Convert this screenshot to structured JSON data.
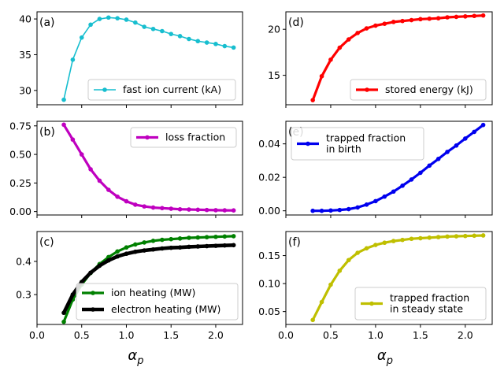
{
  "chart_data": [
    {
      "panel": "(a)",
      "type": "line",
      "legend": "fast ion current (kA)",
      "legend_location": "lower right",
      "color": "#17becf",
      "line_weight": "thin",
      "x": [
        0.3,
        0.4,
        0.5,
        0.6,
        0.7,
        0.8,
        0.9,
        1.0,
        1.1,
        1.2,
        1.3,
        1.4,
        1.5,
        1.6,
        1.7,
        1.8,
        1.9,
        2.0,
        2.1,
        2.2
      ],
      "y": [
        28.7,
        34.3,
        37.4,
        39.2,
        40.0,
        40.2,
        40.1,
        39.9,
        39.5,
        38.9,
        38.6,
        38.3,
        37.9,
        37.6,
        37.2,
        36.9,
        36.7,
        36.5,
        36.2,
        36.0
      ],
      "xlim": [
        0.0,
        2.3
      ],
      "ylim": [
        28.0,
        41.0
      ],
      "yticks": [
        30,
        35,
        40
      ],
      "xticks": [
        0.0,
        0.5,
        1.0,
        1.5,
        2.0
      ],
      "ytick_labels": [
        "30",
        "35",
        "40"
      ],
      "xtick_labels": []
    },
    {
      "panel": "(d)",
      "type": "line",
      "legend": "stored energy (kJ)",
      "legend_location": "lower right",
      "color": "#ff0000",
      "line_weight": "thick",
      "x": [
        0.3,
        0.4,
        0.5,
        0.6,
        0.7,
        0.8,
        0.9,
        1.0,
        1.1,
        1.2,
        1.3,
        1.4,
        1.5,
        1.6,
        1.7,
        1.8,
        1.9,
        2.0,
        2.1,
        2.2
      ],
      "y": [
        12.3,
        14.9,
        16.7,
        18.0,
        18.9,
        19.6,
        20.1,
        20.4,
        20.6,
        20.8,
        20.9,
        21.0,
        21.1,
        21.15,
        21.2,
        21.3,
        21.35,
        21.4,
        21.45,
        21.5
      ],
      "xlim": [
        0.0,
        2.3
      ],
      "ylim": [
        11.8,
        21.9
      ],
      "yticks": [
        15,
        20
      ],
      "xticks": [
        0.0,
        0.5,
        1.0,
        1.5,
        2.0
      ],
      "ytick_labels": [
        "15",
        "20"
      ],
      "xtick_labels": []
    },
    {
      "panel": "(b)",
      "type": "line",
      "legend": "loss fraction",
      "legend_location": "upper right",
      "color": "#bf00bf",
      "line_weight": "thick",
      "x": [
        0.3,
        0.4,
        0.5,
        0.6,
        0.7,
        0.8,
        0.9,
        1.0,
        1.1,
        1.2,
        1.3,
        1.4,
        1.5,
        1.6,
        1.7,
        1.8,
        1.9,
        2.0,
        2.1,
        2.2
      ],
      "y": [
        0.76,
        0.63,
        0.5,
        0.37,
        0.27,
        0.19,
        0.13,
        0.09,
        0.06,
        0.045,
        0.035,
        0.03,
        0.025,
        0.02,
        0.018,
        0.016,
        0.014,
        0.012,
        0.011,
        0.01
      ],
      "xlim": [
        0.0,
        2.3
      ],
      "ylim": [
        -0.03,
        0.79
      ],
      "yticks": [
        0.0,
        0.25,
        0.5,
        0.75
      ],
      "xticks": [
        0.0,
        0.5,
        1.0,
        1.5,
        2.0
      ],
      "ytick_labels": [
        "0.00",
        "0.25",
        "0.50",
        "0.75"
      ],
      "xtick_labels": []
    },
    {
      "panel": "(e)",
      "type": "line",
      "legend": "trapped fraction\n in birth",
      "legend_location": "upper left",
      "color": "#0000ee",
      "line_weight": "thick",
      "x": [
        0.3,
        0.4,
        0.5,
        0.6,
        0.7,
        0.8,
        0.9,
        1.0,
        1.1,
        1.2,
        1.3,
        1.4,
        1.5,
        1.6,
        1.7,
        1.8,
        1.9,
        2.0,
        2.1,
        2.2
      ],
      "y": [
        0.0,
        0.0,
        0.0002,
        0.0005,
        0.001,
        0.002,
        0.0037,
        0.0058,
        0.0085,
        0.0115,
        0.015,
        0.0187,
        0.0227,
        0.027,
        0.031,
        0.0352,
        0.039,
        0.0432,
        0.0472,
        0.0513
      ],
      "xlim": [
        0.0,
        2.3
      ],
      "ylim": [
        -0.0025,
        0.0535
      ],
      "yticks": [
        0.0,
        0.02,
        0.04
      ],
      "xticks": [
        0.0,
        0.5,
        1.0,
        1.5,
        2.0
      ],
      "ytick_labels": [
        "0.00",
        "0.02",
        "0.04"
      ],
      "xtick_labels": []
    },
    {
      "panel": "(c)",
      "type": "line",
      "legend_location": "lower right",
      "series": [
        {
          "name": "ion heating (MW)",
          "color": "#008000",
          "line_weight": "thick",
          "x": [
            0.3,
            0.4,
            0.5,
            0.6,
            0.7,
            0.8,
            0.9,
            1.0,
            1.1,
            1.2,
            1.3,
            1.4,
            1.5,
            1.6,
            1.7,
            1.8,
            1.9,
            2.0,
            2.1,
            2.2
          ],
          "y": [
            0.218,
            0.285,
            0.33,
            0.365,
            0.392,
            0.413,
            0.43,
            0.442,
            0.451,
            0.457,
            0.462,
            0.465,
            0.467,
            0.469,
            0.471,
            0.472,
            0.473,
            0.474,
            0.475,
            0.476
          ]
        },
        {
          "name": "electron heating (MW)",
          "color": "#000000",
          "line_weight": "thicker",
          "x": [
            0.3,
            0.4,
            0.5,
            0.6,
            0.7,
            0.8,
            0.9,
            1.0,
            1.1,
            1.2,
            1.3,
            1.4,
            1.5,
            1.6,
            1.7,
            1.8,
            1.9,
            2.0,
            2.1,
            2.2
          ],
          "y": [
            0.245,
            0.3,
            0.338,
            0.366,
            0.387,
            0.403,
            0.415,
            0.423,
            0.429,
            0.433,
            0.436,
            0.439,
            0.441,
            0.442,
            0.444,
            0.445,
            0.446,
            0.447,
            0.448,
            0.449
          ]
        }
      ],
      "xlim": [
        0.0,
        2.3
      ],
      "ylim": [
        0.21,
        0.49
      ],
      "yticks": [
        0.3,
        0.4
      ],
      "xticks": [
        0.0,
        0.5,
        1.0,
        1.5,
        2.0
      ],
      "ytick_labels": [
        "0.3",
        "0.4"
      ],
      "xtick_labels": [
        "0.0",
        "0.5",
        "1.0",
        "1.5",
        "2.0"
      ],
      "xlabel": "α",
      "xlabel_sub": "p"
    },
    {
      "panel": "(f)",
      "type": "line",
      "legend": "trapped fraction\n in steady state",
      "legend_location": "lower right",
      "color": "#bfbf00",
      "line_weight": "thick",
      "x": [
        0.3,
        0.4,
        0.5,
        0.6,
        0.7,
        0.8,
        0.9,
        1.0,
        1.1,
        1.2,
        1.3,
        1.4,
        1.5,
        1.6,
        1.7,
        1.8,
        1.9,
        2.0,
        2.1,
        2.2
      ],
      "y": [
        0.035,
        0.067,
        0.098,
        0.123,
        0.142,
        0.155,
        0.163,
        0.169,
        0.173,
        0.176,
        0.178,
        0.18,
        0.181,
        0.182,
        0.183,
        0.184,
        0.1845,
        0.185,
        0.1855,
        0.186
      ],
      "xlim": [
        0.0,
        2.3
      ],
      "ylim": [
        0.027,
        0.193
      ],
      "yticks": [
        0.05,
        0.1,
        0.15
      ],
      "xticks": [
        0.0,
        0.5,
        1.0,
        1.5,
        2.0
      ],
      "ytick_labels": [
        "0.05",
        "0.10",
        "0.15"
      ],
      "xtick_labels": [
        "0.0",
        "0.5",
        "1.0",
        "1.5",
        "2.0"
      ],
      "xlabel": "α",
      "xlabel_sub": "p"
    }
  ]
}
